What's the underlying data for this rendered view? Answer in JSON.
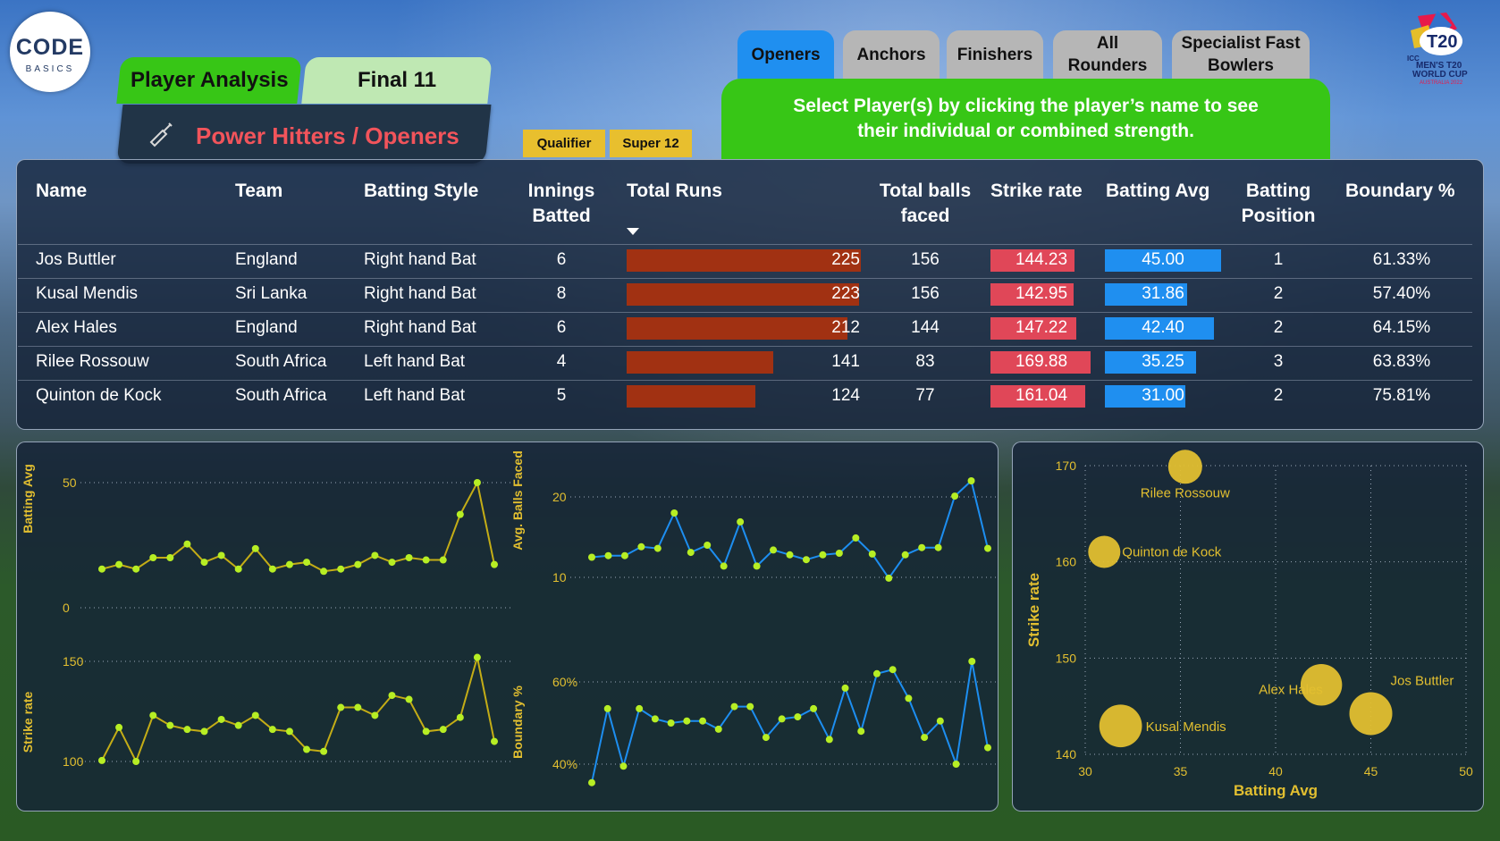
{
  "logo": {
    "main": "CODE",
    "sub": "BASICS"
  },
  "page_tabs": [
    {
      "label": "Player Analysis"
    },
    {
      "label": "Final 11"
    }
  ],
  "page_title": "Power Hitters / Openers",
  "filters": [
    {
      "label": "Qualifier"
    },
    {
      "label": "Super 12"
    }
  ],
  "category_tabs": [
    {
      "label": "Openers",
      "active": true
    },
    {
      "label": "Anchors",
      "active": false
    },
    {
      "label": "Finishers",
      "active": false
    },
    {
      "label": "All Rounders",
      "active": false
    },
    {
      "label": "Specialist Fast Bowlers",
      "active": false
    }
  ],
  "instruction": "Select Player(s) by clicking the player’s name to see their individual or combined strength.",
  "wc_logo": {
    "icc": "ICC",
    "line1": "MEN'S T20",
    "line2": "WORLD CUP",
    "line3": "AUSTRALIA 2022"
  },
  "colors": {
    "runs_bar": "#a13112",
    "strike_bar": "#e04758",
    "avg_bar": "#1f8ff0",
    "accent_green": "#37c616",
    "chart_gold": "#e2bf30",
    "line_lime": "#b7cc18",
    "line_blue": "#1d8ef0"
  },
  "table": {
    "headers": {
      "name": "Name",
      "team": "Team",
      "style": "Batting Style",
      "innings": "Innings Batted",
      "runs": "Total Runs",
      "balls": "Total balls faced",
      "sr": "Strike rate",
      "avg": "Batting Avg",
      "pos": "Batting Position",
      "bnd": "Boundary %"
    },
    "sort_icon": "sort-descending-icon",
    "rows": [
      {
        "name": "Jos Buttler",
        "team": "England",
        "style": "Right hand Bat",
        "innings": "6",
        "runs": "225",
        "runs_val": 225,
        "balls": "156",
        "sr": "144.23",
        "sr_val": 144.23,
        "avg": "45.00",
        "avg_val": 45.0,
        "pos": "1",
        "bnd": "61.33%"
      },
      {
        "name": "Kusal Mendis",
        "team": "Sri Lanka",
        "style": "Right hand Bat",
        "innings": "8",
        "runs": "223",
        "runs_val": 223,
        "balls": "156",
        "sr": "142.95",
        "sr_val": 142.95,
        "avg": "31.86",
        "avg_val": 31.86,
        "pos": "2",
        "bnd": "57.40%"
      },
      {
        "name": "Alex Hales",
        "team": "England",
        "style": "Right hand Bat",
        "innings": "6",
        "runs": "212",
        "runs_val": 212,
        "balls": "144",
        "sr": "147.22",
        "sr_val": 147.22,
        "avg": "42.40",
        "avg_val": 42.4,
        "pos": "2",
        "bnd": "64.15%"
      },
      {
        "name": "Rilee Rossouw",
        "team": "South Africa",
        "style": "Left hand Bat",
        "innings": "4",
        "runs": "141",
        "runs_val": 141,
        "balls": "83",
        "sr": "169.88",
        "sr_val": 169.88,
        "avg": "35.25",
        "avg_val": 35.25,
        "pos": "3",
        "bnd": "63.83%"
      },
      {
        "name": "Quinton de Kock",
        "team": "South Africa",
        "style": "Left hand Bat",
        "innings": "5",
        "runs": "124",
        "runs_val": 124,
        "balls": "77",
        "sr": "161.04",
        "sr_val": 161.04,
        "avg": "31.00",
        "avg_val": 31.0,
        "pos": "2",
        "bnd": "75.81%"
      }
    ]
  },
  "chart_data": [
    {
      "type": "line",
      "ylabel": "Batting Avg",
      "yticks": [
        "50",
        "0"
      ],
      "ylim": [
        0,
        55
      ],
      "values": [
        17,
        19,
        17,
        22,
        22,
        28,
        20,
        23,
        17,
        26,
        17,
        19,
        20,
        16,
        17,
        19,
        23,
        20,
        22,
        21,
        21,
        41,
        55,
        19
      ]
    },
    {
      "type": "line",
      "ylabel": "Avg. Balls Faced",
      "yticks": [
        "20",
        "10"
      ],
      "ylim": [
        10,
        20
      ],
      "values": [
        12.5,
        12.7,
        12.7,
        13.8,
        13.6,
        18,
        13.1,
        14,
        11.4,
        16.9,
        11.4,
        13.4,
        12.8,
        12.2,
        12.8,
        13.0,
        14.9,
        12.9,
        9.9,
        12.8,
        13.7,
        13.7,
        20.1,
        22.0,
        13.6
      ]
    },
    {
      "type": "line",
      "ylabel": "Strike rate",
      "yticks": [
        "150",
        "100"
      ],
      "ylim": [
        100,
        150
      ],
      "values": [
        100.5,
        117,
        100,
        123,
        118,
        116,
        115,
        121,
        118,
        123,
        116,
        115,
        106,
        105,
        127,
        127,
        123,
        133,
        131,
        115,
        116,
        122,
        152,
        110
      ]
    },
    {
      "type": "line",
      "ylabel": "Boundary %",
      "yticks": [
        "60%",
        "40%"
      ],
      "ylim": [
        40,
        60
      ],
      "values": [
        35.5,
        53.5,
        39.5,
        53.5,
        51.0,
        50.0,
        50.5,
        50.5,
        48.5,
        54.0,
        54.0,
        46.5,
        51.0,
        51.5,
        53.5,
        46.0,
        58.5,
        48.0,
        62.0,
        63.0,
        56.0,
        46.5,
        50.5,
        40.0,
        65.0,
        44.0
      ]
    },
    {
      "type": "scatter",
      "xlabel": "Batting Avg",
      "ylabel": "Strike rate",
      "xlim": [
        30,
        50
      ],
      "ylim": [
        140,
        170
      ],
      "xticks": [
        "30",
        "35",
        "40",
        "45",
        "50"
      ],
      "yticks": [
        "170",
        "160",
        "150",
        "140"
      ],
      "points": [
        {
          "label": "Rilee Rossouw",
          "x": 35.25,
          "y": 169.88,
          "size": 141
        },
        {
          "label": "Quinton de Kock",
          "x": 31.0,
          "y": 161.04,
          "size": 124
        },
        {
          "label": "Jos Buttler",
          "x": 45.0,
          "y": 144.23,
          "size": 225
        },
        {
          "label": "Alex Hales",
          "x": 42.4,
          "y": 147.22,
          "size": 212
        },
        {
          "label": "Kusal Mendis",
          "x": 31.86,
          "y": 142.95,
          "size": 223
        }
      ]
    }
  ]
}
